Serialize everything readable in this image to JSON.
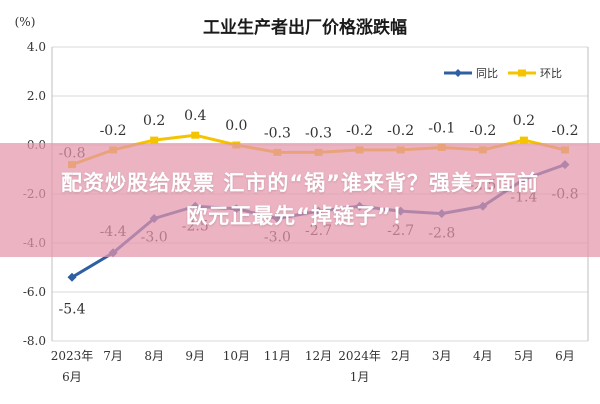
{
  "banner": {
    "line1": "配资炒股给股票 汇市的“锅”谁来背？强美元面前",
    "line2": "欧元正最先“掉链子”！"
  },
  "chart_data": {
    "type": "line",
    "title": "工业生产者出厂价格涨跌幅",
    "ylabel": "(%)",
    "ylim": [
      -8.0,
      4.0
    ],
    "y_ticks": [
      "4.0",
      "2.0",
      "0.0",
      "-2.0",
      "-4.0",
      "-6.0",
      "-8.0"
    ],
    "y_tick_values": [
      4.0,
      2.0,
      0.0,
      -2.0,
      -4.0,
      -6.0,
      -8.0
    ],
    "categories": [
      "2023年6月",
      "7月",
      "8月",
      "9月",
      "10月",
      "11月",
      "12月",
      "2024年1月",
      "2月",
      "3月",
      "4月",
      "5月",
      "6月"
    ],
    "x_tick_labels": [
      [
        "2023年",
        "6月"
      ],
      [
        "7月"
      ],
      [
        "8月"
      ],
      [
        "9月"
      ],
      [
        "10月"
      ],
      [
        "11月"
      ],
      [
        "12月"
      ],
      [
        "2024年",
        "1月"
      ],
      [
        "2月"
      ],
      [
        "3月"
      ],
      [
        "4月"
      ],
      [
        "5月"
      ],
      [
        "6月"
      ]
    ],
    "grid": true,
    "legend_position": "top-right",
    "series": [
      {
        "name": "同比",
        "color": "#2e5fa3",
        "values": [
          -5.4,
          -4.4,
          -3.0,
          -2.5,
          -2.6,
          -3.0,
          -2.7,
          -2.5,
          -2.7,
          -2.8,
          -2.5,
          -1.4,
          -0.8
        ],
        "labels": [
          "-5.4",
          "-4.4",
          "-3.0",
          "-2.5",
          "",
          "-3.0",
          "-2.7",
          "",
          "-2.7",
          "-2.8",
          "-2.5",
          "-1.4",
          "-0.8"
        ]
      },
      {
        "name": "环比",
        "color": "#f5c400",
        "values": [
          -0.8,
          -0.2,
          0.2,
          0.4,
          0.0,
          -0.3,
          -0.3,
          -0.2,
          -0.2,
          -0.1,
          -0.2,
          0.2,
          -0.2
        ],
        "labels": [
          "-0.8",
          "-0.2",
          "0.2",
          "0.4",
          "0.0",
          "-0.3",
          "-0.3",
          "-0.2",
          "-0.2",
          "-0.1",
          "-0.2",
          "0.2",
          "-0.2"
        ]
      }
    ]
  }
}
